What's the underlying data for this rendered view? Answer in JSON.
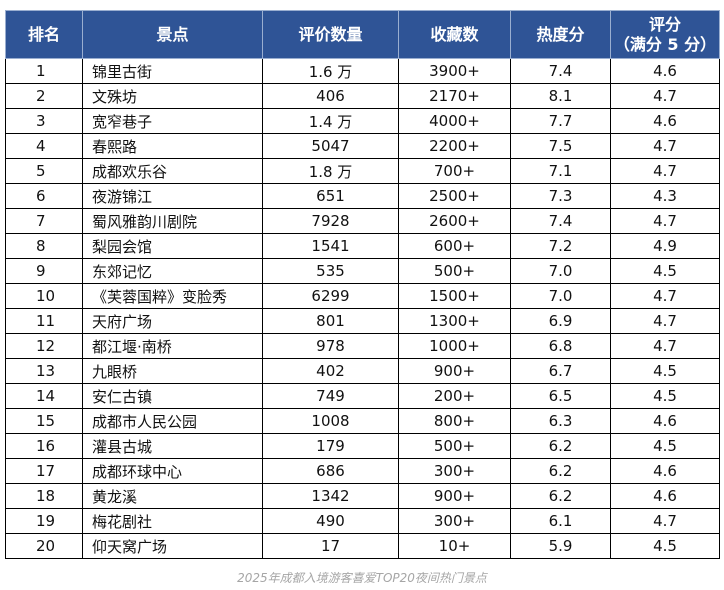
{
  "table": {
    "headers": {
      "rank": "排名",
      "name": "景点",
      "reviews": "评价数量",
      "favorites": "收藏数",
      "heat": "热度分",
      "rating_line1": "评分",
      "rating_line2": "（满分 5 分）"
    },
    "rows": [
      {
        "rank": "1",
        "name": "锦里古街",
        "reviews": "1.6 万",
        "favorites": "3900+",
        "heat": "7.4",
        "rating": "4.6"
      },
      {
        "rank": "2",
        "name": "文殊坊",
        "reviews": "406",
        "favorites": "2170+",
        "heat": "8.1",
        "rating": "4.7"
      },
      {
        "rank": "3",
        "name": "宽窄巷子",
        "reviews": "1.4 万",
        "favorites": "4000+",
        "heat": "7.7",
        "rating": "4.6"
      },
      {
        "rank": "4",
        "name": "春熙路",
        "reviews": "5047",
        "favorites": "2200+",
        "heat": "7.5",
        "rating": "4.7"
      },
      {
        "rank": "5",
        "name": "成都欢乐谷",
        "reviews": "1.8 万",
        "favorites": "700+",
        "heat": "7.1",
        "rating": "4.7"
      },
      {
        "rank": "6",
        "name": "夜游锦江",
        "reviews": "651",
        "favorites": "2500+",
        "heat": "7.3",
        "rating": "4.3"
      },
      {
        "rank": "7",
        "name": "蜀风雅韵川剧院",
        "reviews": "7928",
        "favorites": "2600+",
        "heat": "7.4",
        "rating": "4.7"
      },
      {
        "rank": "8",
        "name": "梨园会馆",
        "reviews": "1541",
        "favorites": "600+",
        "heat": "7.2",
        "rating": "4.9"
      },
      {
        "rank": "9",
        "name": "东郊记忆",
        "reviews": "535",
        "favorites": "500+",
        "heat": "7.0",
        "rating": "4.5"
      },
      {
        "rank": "10",
        "name": "《芙蓉国粹》变脸秀",
        "reviews": "6299",
        "favorites": "1500+",
        "heat": "7.0",
        "rating": "4.7"
      },
      {
        "rank": "11",
        "name": "天府广场",
        "reviews": "801",
        "favorites": "1300+",
        "heat": "6.9",
        "rating": "4.7"
      },
      {
        "rank": "12",
        "name": "都江堰·南桥",
        "reviews": "978",
        "favorites": "1000+",
        "heat": "6.8",
        "rating": "4.7"
      },
      {
        "rank": "13",
        "name": "九眼桥",
        "reviews": "402",
        "favorites": "900+",
        "heat": "6.7",
        "rating": "4.5"
      },
      {
        "rank": "14",
        "name": "安仁古镇",
        "reviews": "749",
        "favorites": "200+",
        "heat": "6.5",
        "rating": "4.5"
      },
      {
        "rank": "15",
        "name": "成都市人民公园",
        "reviews": "1008",
        "favorites": "800+",
        "heat": "6.3",
        "rating": "4.6"
      },
      {
        "rank": "16",
        "name": "灌县古城",
        "reviews": "179",
        "favorites": "500+",
        "heat": "6.2",
        "rating": "4.5"
      },
      {
        "rank": "17",
        "name": "成都环球中心",
        "reviews": "686",
        "favorites": "300+",
        "heat": "6.2",
        "rating": "4.6"
      },
      {
        "rank": "18",
        "name": "黄龙溪",
        "reviews": "1342",
        "favorites": "900+",
        "heat": "6.2",
        "rating": "4.6"
      },
      {
        "rank": "19",
        "name": "梅花剧社",
        "reviews": "490",
        "favorites": "300+",
        "heat": "6.1",
        "rating": "4.7"
      },
      {
        "rank": "20",
        "name": "仰天窝广场",
        "reviews": "17",
        "favorites": "10+",
        "heat": "5.9",
        "rating": "4.5"
      }
    ]
  },
  "caption": "2025年成都入境游客喜爱TOP20夜间热门景点",
  "colors": {
    "header_bg": "#2f5496",
    "header_text": "#ffffff",
    "caption": "#a6a6a6"
  }
}
